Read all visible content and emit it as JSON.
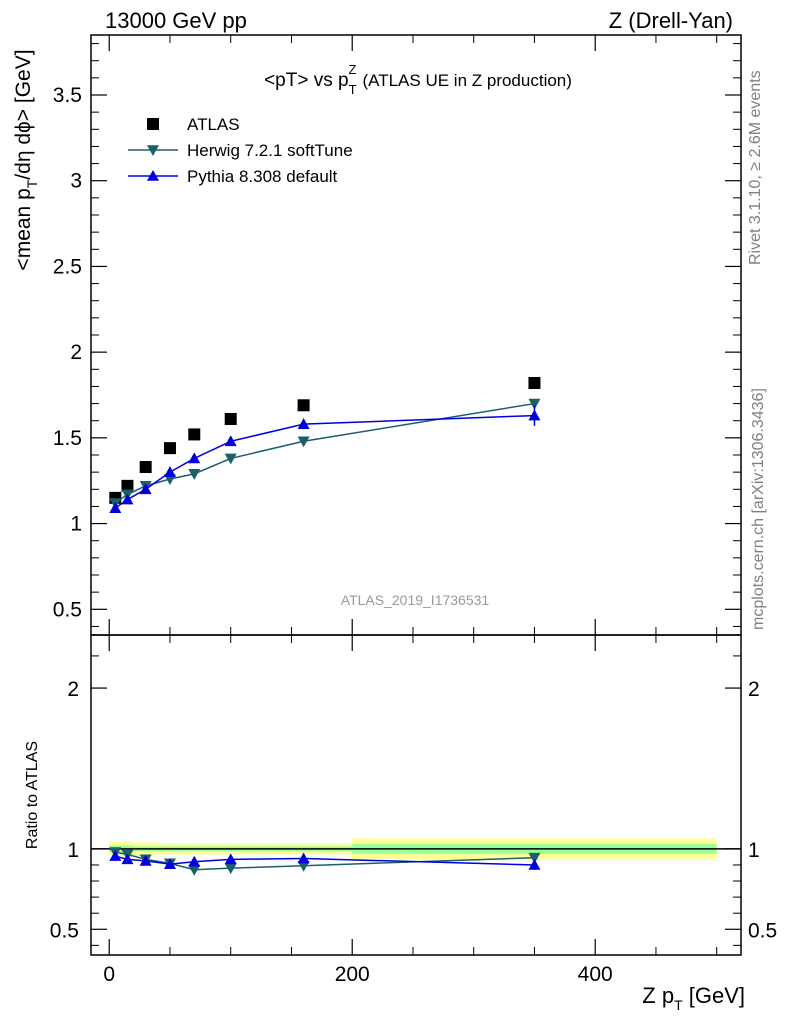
{
  "header": {
    "left": "13000 GeV pp",
    "right": "Z (Drell-Yan)"
  },
  "side_labels": {
    "rivet": "Rivet 3.1.10, ≥ 2.6M events",
    "mcplots": "mcplots.cern.ch [arXiv:1306.3436]"
  },
  "chart_data": [
    {
      "panel": "main",
      "type": "scatter",
      "title_main": "<pT> vs p",
      "title_sup": "Z",
      "title_sub": "T",
      "title_tail": "(ATLAS UE in Z production)",
      "ylabel_pre": "<mean p",
      "ylabel_sub": "T",
      "ylabel_post": "/dη dϕ> [GeV]",
      "watermark": "ATLAS_2019_I1736531",
      "xlim": [
        -15,
        520
      ],
      "ylim": [
        0.35,
        3.85
      ],
      "yticks": [
        0.5,
        1,
        1.5,
        2,
        2.5,
        3,
        3.5
      ],
      "ytick_labels": [
        "0.5",
        "1",
        "1.5",
        "2",
        "2.5",
        "3",
        "3.5"
      ],
      "legend_position": "top-left",
      "series": [
        {
          "name": "ATLAS",
          "marker": "square",
          "color": "#000000",
          "x": [
            5,
            15,
            30,
            50,
            70,
            100,
            160,
            350
          ],
          "y": [
            1.15,
            1.22,
            1.33,
            1.44,
            1.52,
            1.61,
            1.69,
            1.82
          ]
        },
        {
          "name": "Herwig 7.2.1 softTune",
          "marker": "triangle-down",
          "color": "#1b5f6b",
          "x": [
            5,
            15,
            30,
            50,
            70,
            100,
            160,
            350
          ],
          "y": [
            1.12,
            1.17,
            1.22,
            1.26,
            1.29,
            1.38,
            1.48,
            1.7
          ],
          "err": [
            0.01,
            0.01,
            0.01,
            0.01,
            0.01,
            0.01,
            0.01,
            0.02
          ]
        },
        {
          "name": "Pythia 8.308 default",
          "marker": "triangle-up",
          "color": "#0000dd",
          "x": [
            5,
            15,
            30,
            50,
            70,
            100,
            160,
            350
          ],
          "y": [
            1.09,
            1.14,
            1.2,
            1.3,
            1.38,
            1.48,
            1.58,
            1.63
          ],
          "err": [
            0.01,
            0.01,
            0.01,
            0.01,
            0.01,
            0.01,
            0.03,
            0.06
          ]
        }
      ]
    },
    {
      "panel": "ratio",
      "type": "scatter",
      "ylabel": "Ratio to ATLAS",
      "xlabel_pre": "Z p",
      "xlabel_sub": "T",
      "xlabel_post": " [GeV]",
      "xlim": [
        -15,
        520
      ],
      "ylim": [
        0.34,
        2.33
      ],
      "xticks": [
        0,
        200,
        400
      ],
      "xtick_labels": [
        "0",
        "200",
        "400"
      ],
      "yticks": [
        0.5,
        1,
        2
      ],
      "ytick_labels": [
        "0.5",
        "1",
        "2"
      ],
      "bands": [
        {
          "x0": 0,
          "x1": 10,
          "y_inner": 0.02,
          "y_outer": 0.045
        },
        {
          "x0": 10,
          "x1": 20,
          "y_inner": 0.02,
          "y_outer": 0.045
        },
        {
          "x0": 20,
          "x1": 40,
          "y_inner": 0.015,
          "y_outer": 0.04
        },
        {
          "x0": 40,
          "x1": 60,
          "y_inner": 0.015,
          "y_outer": 0.035
        },
        {
          "x0": 60,
          "x1": 80,
          "y_inner": 0.015,
          "y_outer": 0.035
        },
        {
          "x0": 80,
          "x1": 120,
          "y_inner": 0.015,
          "y_outer": 0.035
        },
        {
          "x0": 120,
          "x1": 200,
          "y_inner": 0.015,
          "y_outer": 0.035
        },
        {
          "x0": 200,
          "x1": 500,
          "y_inner": 0.03,
          "y_outer": 0.065
        }
      ],
      "series": [
        {
          "name": "Herwig 7.2.1 softTune",
          "marker": "triangle-down",
          "color": "#1b5f6b",
          "x": [
            5,
            15,
            30,
            50,
            70,
            100,
            160,
            350
          ],
          "y": [
            0.98,
            0.965,
            0.935,
            0.91,
            0.87,
            0.88,
            0.895,
            0.945
          ],
          "err": [
            0.01,
            0.01,
            0.01,
            0.01,
            0.01,
            0.01,
            0.01,
            0.02
          ]
        },
        {
          "name": "Pythia 8.308 default",
          "marker": "triangle-up",
          "color": "#0000dd",
          "x": [
            5,
            15,
            30,
            50,
            70,
            100,
            160,
            350
          ],
          "y": [
            0.955,
            0.935,
            0.925,
            0.905,
            0.92,
            0.935,
            0.94,
            0.9
          ],
          "err": [
            0.01,
            0.01,
            0.01,
            0.01,
            0.01,
            0.01,
            0.02,
            0.03
          ]
        }
      ]
    }
  ]
}
